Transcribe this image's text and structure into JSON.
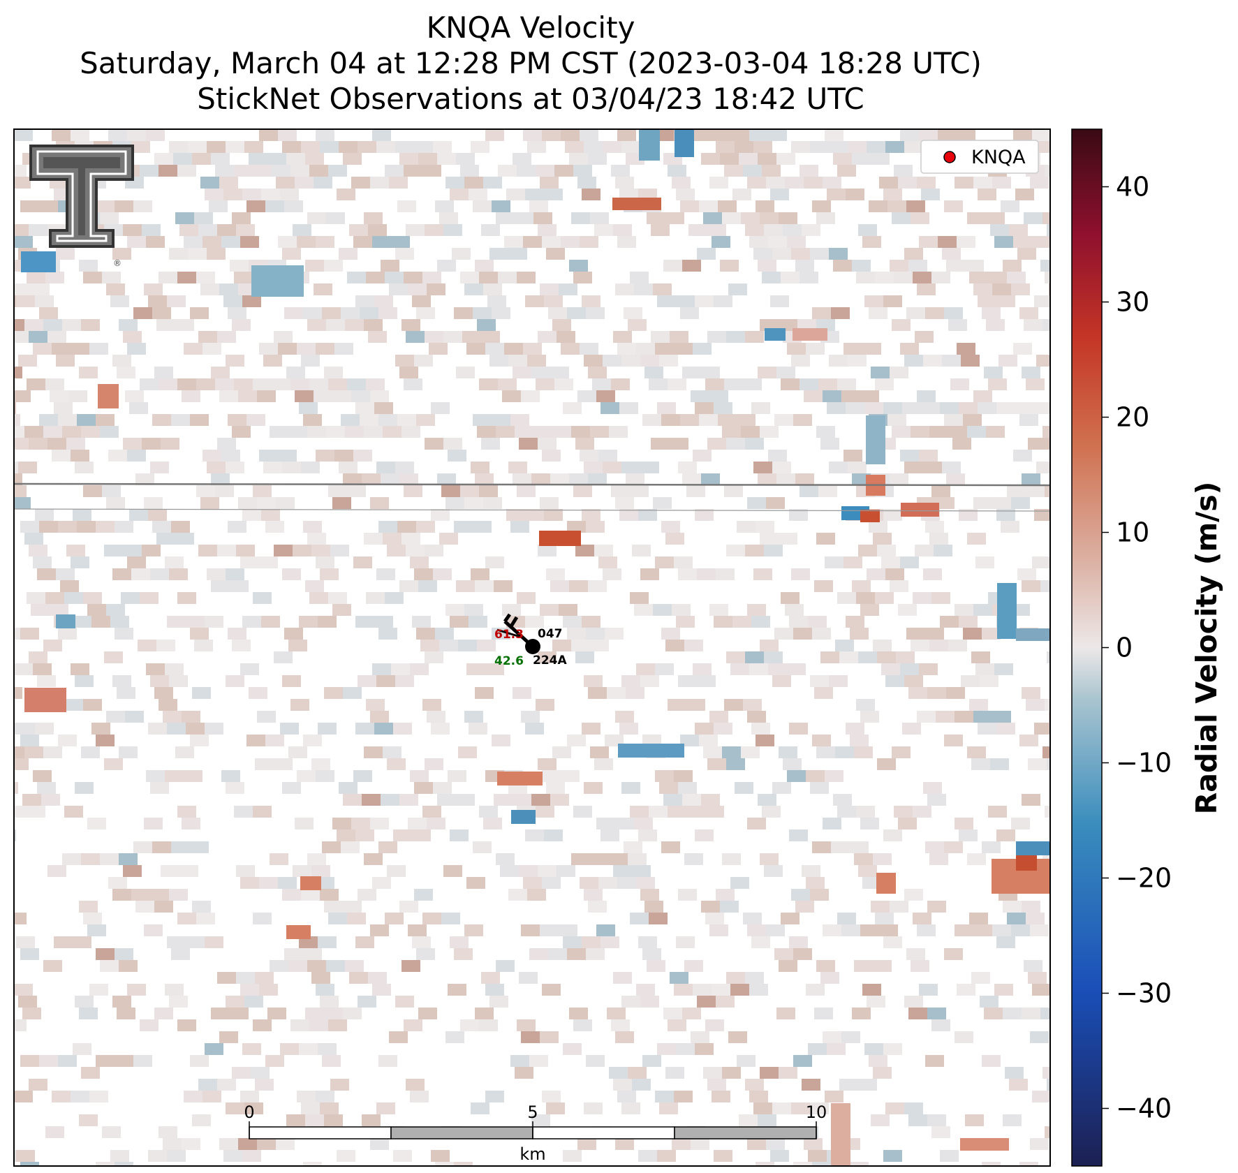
{
  "title": {
    "line1": "KNQA Velocity",
    "line2": "Saturday, March 04 at 12:28 PM CST (2023-03-04 18:28 UTC)",
    "line3": "StickNet Observations at 03/04/23 18:42 UTC"
  },
  "legend": {
    "label": "KNQA",
    "marker_color": "#e8000b"
  },
  "logo": {
    "letters": "TT",
    "registered": "®"
  },
  "colorbar": {
    "label": "Radial Velocity (m/s)",
    "vmin": -45,
    "vmax": 45,
    "ticks": [
      "40",
      "30",
      "20",
      "10",
      "0",
      "−10",
      "−20",
      "−30",
      "−40"
    ],
    "tick_values": [
      40,
      30,
      20,
      10,
      0,
      -10,
      -20,
      -30,
      -40
    ]
  },
  "scalebar": {
    "labels": [
      "0",
      "5",
      "10"
    ],
    "unit": "km"
  },
  "station": {
    "id": "224A",
    "temperature": "61.3",
    "dewpoint": "42.6",
    "pressure": "047",
    "temp_color": "#c00000",
    "dew_color": "#007000"
  },
  "colors": {
    "neg_strong": "#1f2a6b",
    "neg": "#2c7bb6",
    "neutral": "#ece6e6",
    "pos": "#d4694a",
    "pos_strong": "#3b0a12"
  }
}
